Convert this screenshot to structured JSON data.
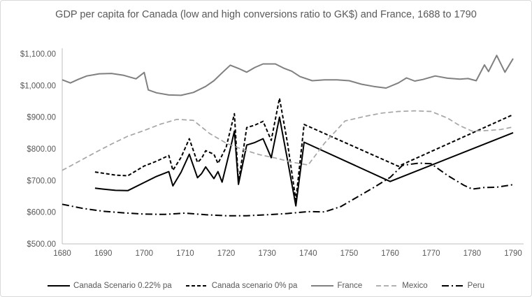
{
  "chart_data": {
    "type": "line",
    "title": "GDP per capita for Canada (low and high conversions ratio to GK$) and France, 1688 to 1790",
    "grid": false,
    "legend_position": "bottom",
    "x_axis": {
      "min": 1680,
      "max": 1790,
      "tick_labels": [
        "1680",
        "1690",
        "1700",
        "1710",
        "1720",
        "1730",
        "1740",
        "1750",
        "1760",
        "1770",
        "1780",
        "1790"
      ],
      "tick_values": [
        1680,
        1690,
        1700,
        1710,
        1720,
        1730,
        1740,
        1750,
        1760,
        1770,
        1780,
        1790
      ]
    },
    "y_axis": {
      "min": 500,
      "max": 1100,
      "tick_values": [
        500,
        600,
        700,
        800,
        900,
        1000,
        1100
      ],
      "tick_labels": [
        "$500.00",
        "$600.00",
        "$700.00",
        "$800.00",
        "$900.00",
        "$1,000.00",
        "$1,100.00"
      ]
    },
    "colors": {
      "black": "#000000",
      "france_gray": "#808080",
      "mexico_gray": "#a6a6a6",
      "axis": "#bfbfbf",
      "text": "#595959"
    },
    "series": [
      {
        "name": "Canada Scenario 0.22% pa",
        "color": "#000000",
        "style": "solid",
        "points": [
          [
            1688,
            676
          ],
          [
            1690,
            673
          ],
          [
            1693,
            669
          ],
          [
            1696,
            668
          ],
          [
            1700,
            694
          ],
          [
            1703,
            713
          ],
          [
            1706,
            728
          ],
          [
            1707,
            683
          ],
          [
            1709,
            726
          ],
          [
            1711,
            783
          ],
          [
            1713,
            709
          ],
          [
            1714,
            722
          ],
          [
            1715,
            743
          ],
          [
            1717,
            706
          ],
          [
            1718,
            728
          ],
          [
            1719,
            695
          ],
          [
            1721,
            800
          ],
          [
            1722,
            856
          ],
          [
            1723,
            688
          ],
          [
            1725,
            812
          ],
          [
            1727,
            820
          ],
          [
            1729,
            832
          ],
          [
            1731,
            772
          ],
          [
            1733,
            900
          ],
          [
            1735,
            762
          ],
          [
            1737,
            620
          ],
          [
            1739,
            821
          ],
          [
            1760,
            697
          ],
          [
            1790,
            851
          ]
        ]
      },
      {
        "name": "Canada scenario 0% pa",
        "color": "#000000",
        "style": "dash",
        "points": [
          [
            1688,
            727
          ],
          [
            1690,
            723
          ],
          [
            1693,
            717
          ],
          [
            1696,
            715
          ],
          [
            1700,
            746
          ],
          [
            1703,
            761
          ],
          [
            1706,
            779
          ],
          [
            1707,
            732
          ],
          [
            1709,
            773
          ],
          [
            1711,
            832
          ],
          [
            1713,
            757
          ],
          [
            1714,
            770
          ],
          [
            1715,
            794
          ],
          [
            1717,
            783
          ],
          [
            1718,
            754
          ],
          [
            1720,
            805
          ],
          [
            1722,
            911
          ],
          [
            1723,
            694
          ],
          [
            1725,
            867
          ],
          [
            1727,
            875
          ],
          [
            1729,
            887
          ],
          [
            1731,
            827
          ],
          [
            1733,
            960
          ],
          [
            1735,
            815
          ],
          [
            1737,
            638
          ],
          [
            1739,
            877
          ],
          [
            1762,
            745
          ],
          [
            1790,
            908
          ]
        ]
      },
      {
        "name": "France",
        "color": "#808080",
        "style": "solid",
        "points": [
          [
            1680,
            1018
          ],
          [
            1682,
            1008
          ],
          [
            1684,
            1020
          ],
          [
            1686,
            1030
          ],
          [
            1689,
            1037
          ],
          [
            1692,
            1038
          ],
          [
            1695,
            1032
          ],
          [
            1698,
            1021
          ],
          [
            1700,
            1041
          ],
          [
            1701,
            986
          ],
          [
            1703,
            977
          ],
          [
            1706,
            970
          ],
          [
            1709,
            969
          ],
          [
            1712,
            978
          ],
          [
            1715,
            997
          ],
          [
            1717,
            1015
          ],
          [
            1719,
            1040
          ],
          [
            1721,
            1064
          ],
          [
            1723,
            1054
          ],
          [
            1725,
            1042
          ],
          [
            1727,
            1057
          ],
          [
            1729,
            1068
          ],
          [
            1732,
            1068
          ],
          [
            1734,
            1055
          ],
          [
            1736,
            1045
          ],
          [
            1738,
            1028
          ],
          [
            1741,
            1015
          ],
          [
            1744,
            1018
          ],
          [
            1747,
            1018
          ],
          [
            1750,
            1015
          ],
          [
            1753,
            1004
          ],
          [
            1756,
            997
          ],
          [
            1759,
            992
          ],
          [
            1762,
            1008
          ],
          [
            1764,
            1024
          ],
          [
            1766,
            1014
          ],
          [
            1768,
            1019
          ],
          [
            1771,
            1030
          ],
          [
            1774,
            1023
          ],
          [
            1777,
            1020
          ],
          [
            1779,
            1022
          ],
          [
            1781,
            1015
          ],
          [
            1783,
            1065
          ],
          [
            1784,
            1044
          ],
          [
            1786,
            1095
          ],
          [
            1788,
            1042
          ],
          [
            1790,
            1085
          ]
        ]
      },
      {
        "name": "Mexico",
        "color": "#a6a6a6",
        "style": "long-dash",
        "points": [
          [
            1680,
            732
          ],
          [
            1684,
            760
          ],
          [
            1688,
            788
          ],
          [
            1692,
            815
          ],
          [
            1696,
            840
          ],
          [
            1700,
            858
          ],
          [
            1704,
            878
          ],
          [
            1708,
            893
          ],
          [
            1712,
            890
          ],
          [
            1716,
            848
          ],
          [
            1720,
            818
          ],
          [
            1724,
            798
          ],
          [
            1728,
            782
          ],
          [
            1732,
            771
          ],
          [
            1736,
            758
          ],
          [
            1740,
            749
          ],
          [
            1744,
            818
          ],
          [
            1749,
            888
          ],
          [
            1754,
            903
          ],
          [
            1758,
            913
          ],
          [
            1762,
            918
          ],
          [
            1766,
            920
          ],
          [
            1770,
            918
          ],
          [
            1774,
            897
          ],
          [
            1777,
            873
          ],
          [
            1780,
            856
          ],
          [
            1784,
            858
          ],
          [
            1787,
            861
          ],
          [
            1790,
            869
          ]
        ]
      },
      {
        "name": "Peru",
        "color": "#000000",
        "style": "dash-dot",
        "points": [
          [
            1680,
            625
          ],
          [
            1685,
            612
          ],
          [
            1690,
            603
          ],
          [
            1695,
            598
          ],
          [
            1700,
            594
          ],
          [
            1705,
            593
          ],
          [
            1710,
            597
          ],
          [
            1715,
            592
          ],
          [
            1720,
            589
          ],
          [
            1725,
            589
          ],
          [
            1730,
            592
          ],
          [
            1735,
            596
          ],
          [
            1740,
            602
          ],
          [
            1744,
            601
          ],
          [
            1748,
            618
          ],
          [
            1752,
            648
          ],
          [
            1756,
            678
          ],
          [
            1760,
            710
          ],
          [
            1763,
            748
          ],
          [
            1767,
            755
          ],
          [
            1770,
            753
          ],
          [
            1774,
            716
          ],
          [
            1778,
            685
          ],
          [
            1780,
            673
          ],
          [
            1783,
            678
          ],
          [
            1786,
            679
          ],
          [
            1790,
            687
          ]
        ]
      }
    ]
  }
}
